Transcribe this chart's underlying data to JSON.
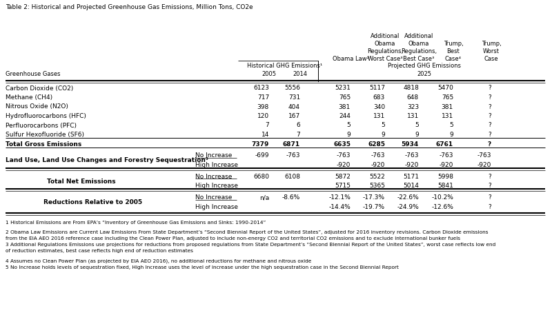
{
  "title": "Table 2: Historical and Projected Greenhouse Gas Emissions, Million Tons, CO2e",
  "subheader_hist": "Historical GHG Emissions¹",
  "subheader_proj": "Projected GHG Emissions",
  "year_hist": [
    "2005",
    "2014"
  ],
  "year_proj": "2025",
  "col_label": "Greenhouse Gases",
  "rows": [
    [
      "Carbon Dioxide (CO2)",
      "6123",
      "5556",
      "5231",
      "5117",
      "4818",
      "5470",
      "?"
    ],
    [
      "Methane (CH4)",
      "717",
      "731",
      "765",
      "683",
      "648",
      "765",
      "?"
    ],
    [
      "Nitrous Oxide (N2O)",
      "398",
      "404",
      "381",
      "340",
      "323",
      "381",
      "?"
    ],
    [
      "Hydrofluorocarbons (HFC)",
      "120",
      "167",
      "244",
      "131",
      "131",
      "131",
      "?"
    ],
    [
      "Perfluorocarbons (PFC)",
      "7",
      "6",
      "5",
      "5",
      "5",
      "5",
      "?"
    ],
    [
      "Sulfur Hexofluoride (SF6)",
      "14",
      "7",
      "9",
      "9",
      "9",
      "9",
      "?"
    ]
  ],
  "total_gross": [
    "Total Gross Emissions",
    "7379",
    "6871",
    "6635",
    "6285",
    "5934",
    "6761",
    "?"
  ],
  "lulucf_label": "Land Use, Land Use Changes and Forestry Sequestration⁵",
  "lulucf_ni": [
    "-699",
    "-763",
    "-763",
    "-763",
    "-763",
    "-763",
    "-763"
  ],
  "lulucf_hi": [
    "",
    "",
    "-920",
    "-920",
    "-920",
    "-920",
    "-920"
  ],
  "net_label": "Total Net Emissions",
  "net_ni": [
    "6680",
    "6108",
    "5872",
    "5522",
    "5171",
    "5998",
    "?"
  ],
  "net_hi": [
    "",
    "",
    "5715",
    "5365",
    "5014",
    "5841",
    "?"
  ],
  "red_label": "Reductions Relative to 2005",
  "red_ni": [
    "n/a",
    "-8.6%",
    "-12.1%",
    "-17.3%",
    "-22.6%",
    "-10.2%",
    "?"
  ],
  "red_hi": [
    "",
    "",
    "-14.4%",
    "-19.7%",
    "-24.9%",
    "-12.6%",
    "?"
  ],
  "footnotes": [
    "1 Historical Emissions are From EPA’s “Inventory of Greenhouse Gas Emissions and Sinks: 1990-2014”",
    "",
    "2 Obama Law Emissions are Current Law Emissions From State Department’s “Second Biennial Report of the United States”, adjusted for 2016 inventory revisions. Carbon Dioxide emissions",
    "from the EIA AEO 2016 reference case including the Clean Power Plan, adjusted to include non-energy CO2 and territorial CO2 emissions and to exclude international bunker fuels",
    "3 Additional Regulations Emissions use projections for reductions from proposed regulations from State Department’s “Second Biennial Report of the United States”, worst case reflects low end",
    "of reduction estimates, best case reflects high end of reduction estimates",
    "",
    "4 Assumes no Clean Power Plan (as projected by EIA AEO 2016), no additional reductions for methane and nitrous oxide",
    "5 No Increase holds levels of sequestration fixed, High Increase uses the level of increase under the high sequestration case in the Second Biennial Report"
  ],
  "bg_color": "#ffffff",
  "text_color": "#000000"
}
